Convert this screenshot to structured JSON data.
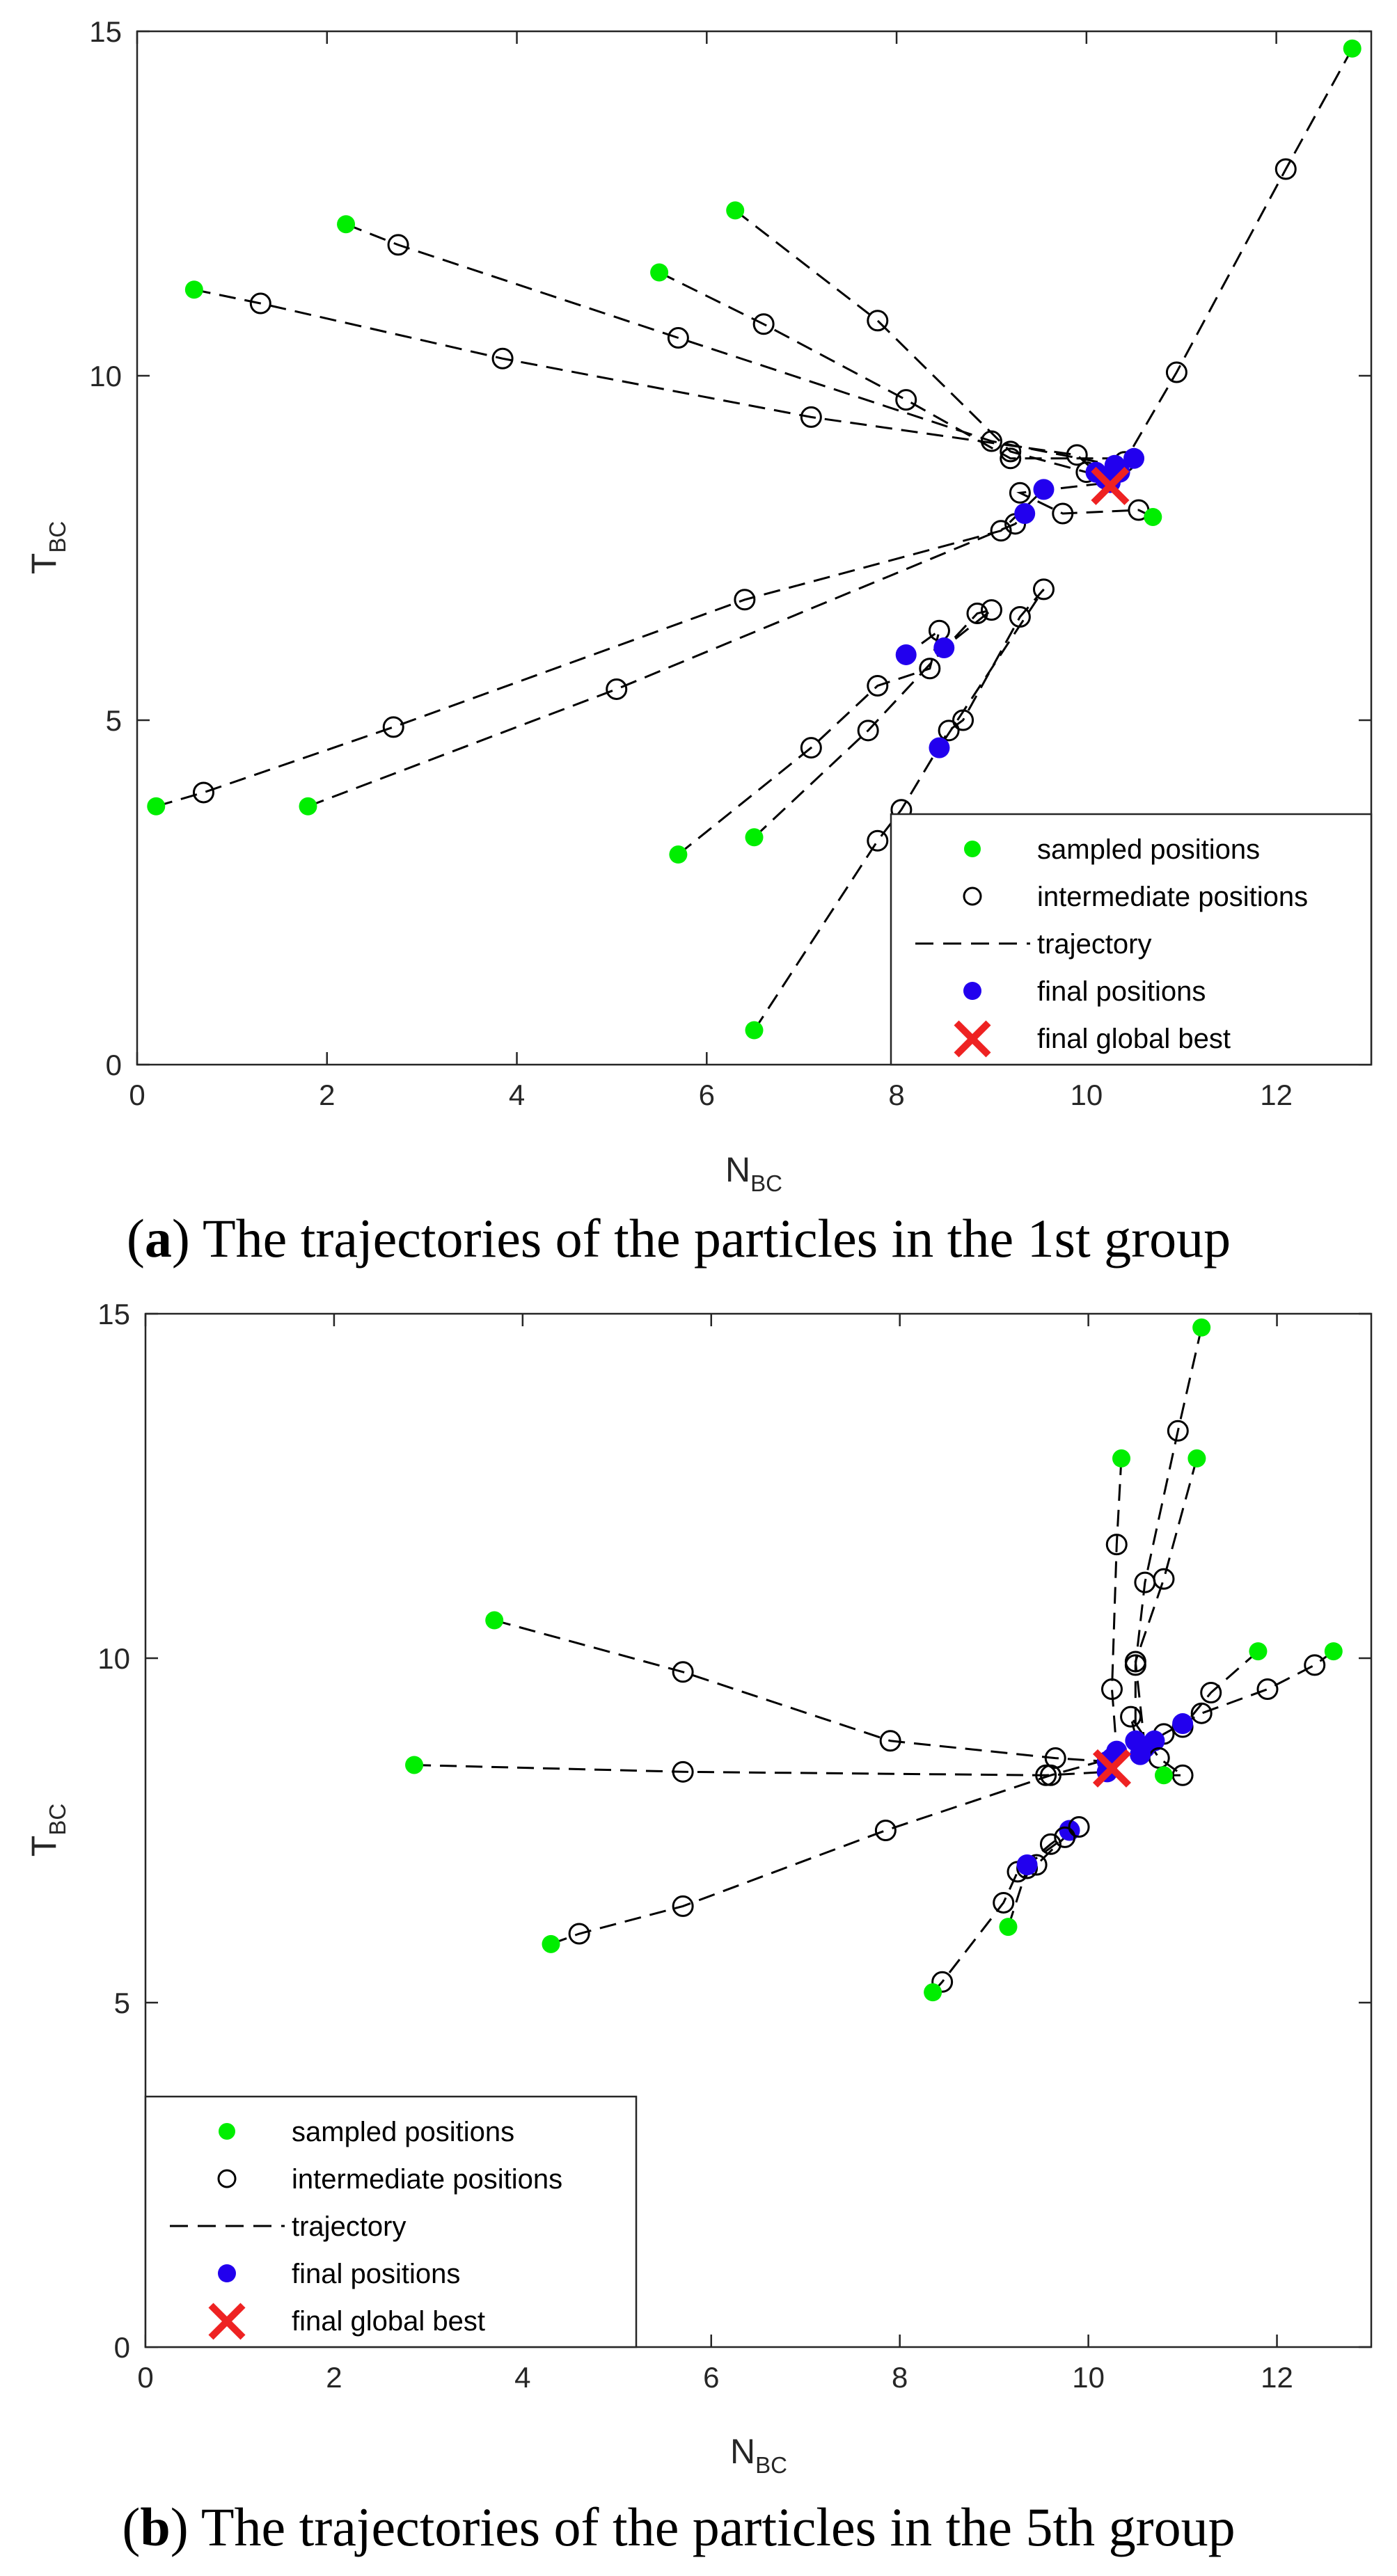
{
  "legend_labels": {
    "sampled": "sampled positions",
    "intermediate": "intermediate positions",
    "trajectory": "trajectory",
    "final": "final positions",
    "best": "final global best"
  },
  "colors": {
    "sampled": "#00ee00",
    "intermediate": "#000000",
    "trajectory": "#000000",
    "final": "#2200ee",
    "best": "#ee2222"
  },
  "chart_data": [
    {
      "type": "scatter",
      "caption_letter": "a",
      "caption_text": "The trajectories of the particles in the 1st group",
      "xlabel_main": "N",
      "xlabel_sub": "BC",
      "ylabel_main": "T",
      "ylabel_sub": "BC",
      "xlim": [
        0,
        13
      ],
      "ylim": [
        0,
        15
      ],
      "xticks": [
        0,
        2,
        4,
        6,
        8,
        10,
        12
      ],
      "yticks": [
        0,
        5,
        10,
        15
      ],
      "legend_position": "bottom-right",
      "global_best": [
        10.25,
        8.4
      ],
      "trajectories": [
        {
          "start": [
            12.8,
            14.75
          ],
          "intermediate": [
            [
              12.1,
              13.0
            ],
            [
              10.95,
              10.05
            ],
            [
              10.4,
              8.75
            ]
          ],
          "final": [
            10.35,
            8.6
          ]
        },
        {
          "start": [
            6.3,
            12.4
          ],
          "intermediate": [
            [
              7.8,
              10.8
            ],
            [
              9.2,
              8.9
            ],
            [
              10.0,
              8.6
            ]
          ],
          "final": [
            10.2,
            8.5
          ]
        },
        {
          "start": [
            5.5,
            11.5
          ],
          "intermediate": [
            [
              6.6,
              10.75
            ],
            [
              8.1,
              9.65
            ],
            [
              9.2,
              8.8
            ]
          ],
          "final": [
            10.5,
            8.8
          ]
        },
        {
          "start": [
            2.2,
            12.2
          ],
          "intermediate": [
            [
              2.75,
              11.9
            ],
            [
              5.7,
              10.55
            ],
            [
              9.0,
              9.05
            ]
          ],
          "final": [
            10.3,
            8.7
          ]
        },
        {
          "start": [
            0.6,
            11.25
          ],
          "intermediate": [
            [
              1.3,
              11.05
            ],
            [
              3.85,
              10.25
            ],
            [
              7.1,
              9.4
            ],
            [
              9.9,
              8.85
            ]
          ],
          "final": [
            10.1,
            8.6
          ]
        },
        {
          "start": [
            0.2,
            3.75
          ],
          "intermediate": [
            [
              0.7,
              3.95
            ],
            [
              2.7,
              4.9
            ],
            [
              6.4,
              6.75
            ],
            [
              9.1,
              7.75
            ]
          ],
          "final": [
            9.55,
            8.35
          ]
        },
        {
          "start": [
            1.8,
            3.75
          ],
          "intermediate": [
            [
              5.05,
              5.45
            ],
            [
              9.25,
              7.85
            ]
          ],
          "final": [
            9.35,
            8.0
          ]
        },
        {
          "start": [
            5.7,
            3.05
          ],
          "intermediate": [
            [
              7.1,
              4.6
            ],
            [
              7.8,
              5.5
            ],
            [
              8.35,
              5.75
            ],
            [
              8.45,
              6.3
            ]
          ],
          "final": [
            8.1,
            5.95
          ]
        },
        {
          "start": [
            6.5,
            3.3
          ],
          "intermediate": [
            [
              7.7,
              4.85
            ],
            [
              8.85,
              6.55
            ],
            [
              9.0,
              6.6
            ]
          ],
          "final": [
            8.5,
            6.05
          ]
        },
        {
          "start": [
            6.5,
            0.5
          ],
          "intermediate": [
            [
              7.8,
              3.25
            ],
            [
              8.05,
              3.7
            ],
            [
              8.55,
              4.85
            ],
            [
              8.7,
              5.0
            ],
            [
              9.3,
              6.5
            ],
            [
              9.55,
              6.9
            ]
          ],
          "final": [
            8.45,
            4.6
          ]
        },
        {
          "start": [
            10.7,
            7.95
          ],
          "intermediate": [
            [
              10.55,
              8.05
            ],
            [
              9.75,
              8.0
            ],
            [
              9.3,
              8.3
            ]
          ],
          "final": [
            10.25,
            8.45
          ]
        }
      ]
    },
    {
      "type": "scatter",
      "caption_letter": "b",
      "caption_text": "The trajectories of the particles in the 5th group",
      "xlabel_main": "N",
      "xlabel_sub": "BC",
      "ylabel_main": "T",
      "ylabel_sub": "BC",
      "xlim": [
        0,
        13
      ],
      "ylim": [
        0,
        15
      ],
      "xticks": [
        0,
        2,
        4,
        6,
        8,
        10,
        12
      ],
      "yticks": [
        0,
        5,
        10,
        15
      ],
      "legend_position": "bottom-left",
      "global_best": [
        10.25,
        8.4
      ],
      "trajectories": [
        {
          "start": [
            11.2,
            14.8
          ],
          "intermediate": [
            [
              10.95,
              13.3
            ],
            [
              10.6,
              11.1
            ],
            [
              10.5,
              9.9
            ]
          ],
          "final": [
            10.5,
            8.8
          ]
        },
        {
          "start": [
            10.35,
            12.9
          ],
          "intermediate": [
            [
              10.3,
              11.65
            ],
            [
              10.25,
              9.55
            ]
          ],
          "final": [
            10.3,
            8.65
          ]
        },
        {
          "start": [
            11.15,
            12.9
          ],
          "intermediate": [
            [
              10.8,
              11.15
            ],
            [
              10.5,
              9.95
            ]
          ],
          "final": [
            10.6,
            8.7
          ]
        },
        {
          "start": [
            3.7,
            10.55
          ],
          "intermediate": [
            [
              5.7,
              9.8
            ],
            [
              7.9,
              8.8
            ],
            [
              9.65,
              8.55
            ]
          ],
          "final": [
            10.2,
            8.5
          ]
        },
        {
          "start": [
            2.85,
            8.45
          ],
          "intermediate": [
            [
              5.7,
              8.35
            ],
            [
              9.55,
              8.3
            ]
          ],
          "final": [
            10.2,
            8.35
          ]
        },
        {
          "start": [
            4.3,
            5.85
          ],
          "intermediate": [
            [
              4.6,
              6.0
            ],
            [
              5.7,
              6.4
            ],
            [
              7.85,
              7.5
            ],
            [
              9.6,
              8.3
            ]
          ],
          "final": [
            10.25,
            8.55
          ]
        },
        {
          "start": [
            11.8,
            10.1
          ],
          "intermediate": [
            [
              11.3,
              9.5
            ],
            [
              11.0,
              9.0
            ]
          ],
          "final": [
            11.0,
            9.05
          ]
        },
        {
          "start": [
            12.6,
            10.1
          ],
          "intermediate": [
            [
              12.4,
              9.9
            ],
            [
              11.9,
              9.55
            ],
            [
              11.2,
              9.2
            ],
            [
              10.8,
              8.9
            ]
          ],
          "final": [
            10.7,
            8.8
          ]
        },
        {
          "start": [
            8.35,
            5.15
          ],
          "intermediate": [
            [
              8.45,
              5.3
            ],
            [
              9.1,
              6.45
            ],
            [
              9.25,
              6.9
            ],
            [
              9.6,
              7.3
            ]
          ],
          "final": [
            9.8,
            7.5
          ]
        },
        {
          "start": [
            9.15,
            6.1
          ],
          "intermediate": [
            [
              9.35,
              6.95
            ],
            [
              9.45,
              7.0
            ],
            [
              9.75,
              7.4
            ],
            [
              9.9,
              7.55
            ]
          ],
          "final": [
            9.35,
            7.0
          ]
        },
        {
          "start": [
            10.8,
            8.3
          ],
          "intermediate": [
            [
              11.0,
              8.3
            ],
            [
              10.75,
              8.55
            ],
            [
              10.45,
              9.15
            ]
          ],
          "final": [
            10.55,
            8.6
          ]
        }
      ]
    }
  ]
}
